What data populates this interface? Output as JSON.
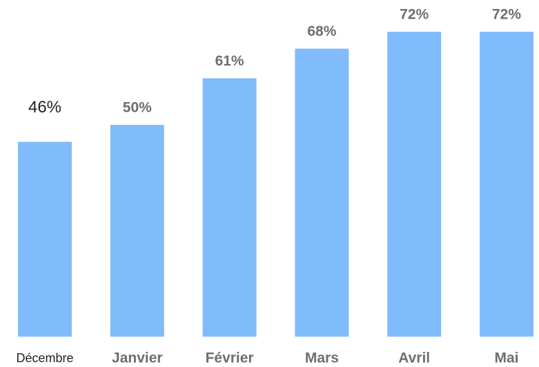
{
  "chart_data": {
    "type": "bar",
    "categories": [
      "Décembre",
      "Janvier",
      "Février",
      "Mars",
      "Avril",
      "Mai"
    ],
    "values": [
      46,
      50,
      61,
      68,
      72,
      72
    ],
    "value_labels": [
      "46%",
      "50%",
      "61%",
      "68%",
      "72%",
      "72%"
    ],
    "color": "#80bcfc"
  }
}
